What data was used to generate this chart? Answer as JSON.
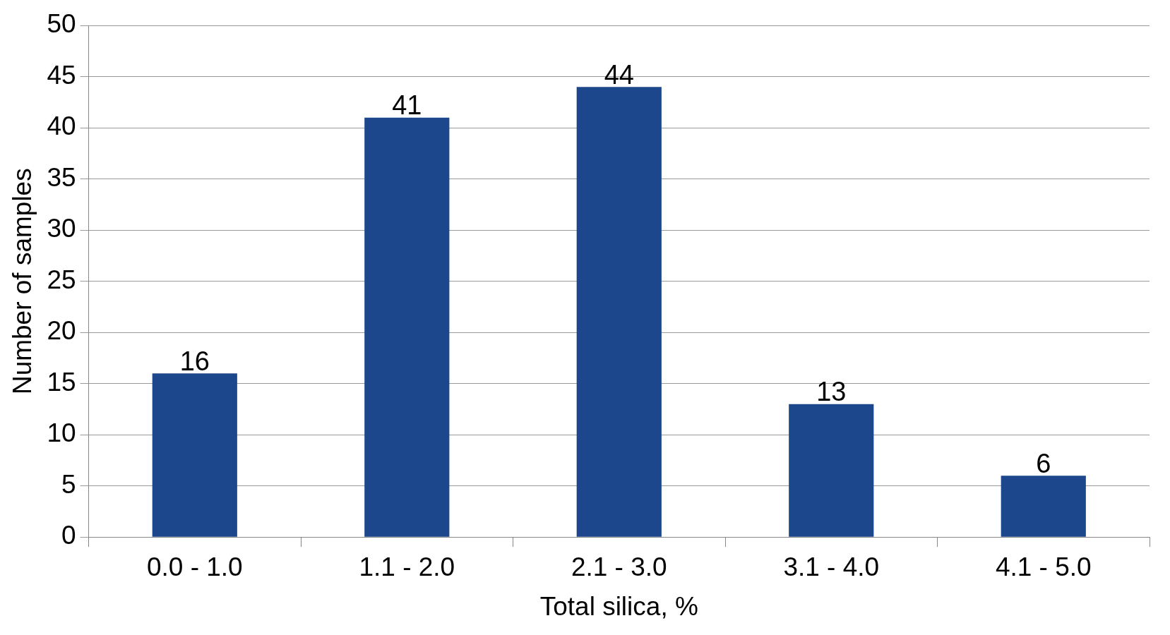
{
  "chart_data": {
    "type": "bar",
    "xlabel": "Total silica, %",
    "ylabel": "Number of samples",
    "categories": [
      "0.0 - 1.0",
      "1.1 - 2.0",
      "2.1 - 3.0",
      "3.1 - 4.0",
      "4.1 - 5.0"
    ],
    "values": [
      16,
      41,
      44,
      13,
      6
    ],
    "color": "#1c478c",
    "ylim": [
      0,
      50
    ],
    "yticks": [
      0,
      5,
      10,
      15,
      20,
      25,
      30,
      35,
      40,
      45,
      50
    ],
    "grid": "y",
    "data_labels": true,
    "legend": false
  }
}
